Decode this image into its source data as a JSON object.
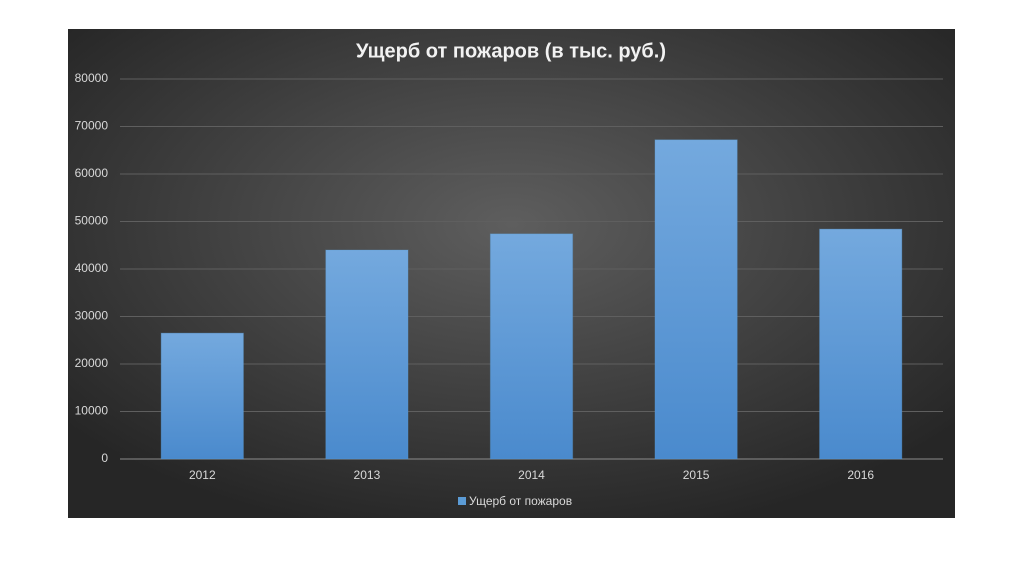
{
  "chart_data": {
    "type": "bar",
    "title": "Ущерб от пожаров (в тыс. руб.)",
    "categories": [
      "2012",
      "2013",
      "2014",
      "2015",
      "2016"
    ],
    "series": [
      {
        "name": "Ущерб от пожаров",
        "color": "#5b9bd5",
        "values": [
          26500,
          44000,
          47400,
          67200,
          48400
        ]
      }
    ],
    "ylim": [
      0,
      80000
    ],
    "yticks": [
      0,
      10000,
      20000,
      30000,
      40000,
      50000,
      60000,
      70000,
      80000
    ],
    "grid": true,
    "legend": "bottom"
  }
}
